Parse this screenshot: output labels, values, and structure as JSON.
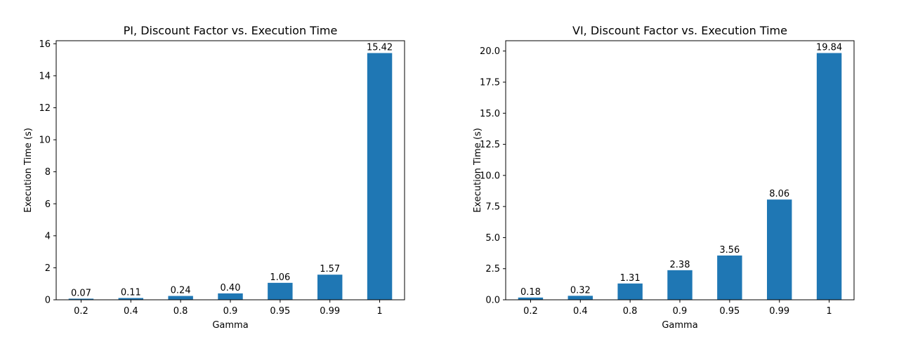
{
  "chart_data": [
    {
      "type": "bar",
      "title": "PI, Discount Factor vs. Execution Time",
      "xlabel": "Gamma",
      "ylabel": "Execution Time (s)",
      "categories": [
        "0.2",
        "0.4",
        "0.8",
        "0.9",
        "0.95",
        "0.99",
        "1"
      ],
      "values": [
        0.07,
        0.11,
        0.24,
        0.4,
        1.06,
        1.57,
        15.42
      ],
      "data_labels": [
        "0.07",
        "0.11",
        "0.24",
        "0.40",
        "1.06",
        "1.57",
        "15.42"
      ],
      "ylim": [
        0,
        16.19
      ],
      "yticks": [
        0,
        2,
        4,
        6,
        8,
        10,
        12,
        14,
        16
      ],
      "ytick_labels": [
        "0",
        "2",
        "4",
        "6",
        "8",
        "10",
        "12",
        "14",
        "16"
      ],
      "bar_color": "#1f77b4",
      "grid": false,
      "legend": "none"
    },
    {
      "type": "bar",
      "title": "VI, Discount Factor vs. Execution Time",
      "xlabel": "Gamma",
      "ylabel": "Execution Time (s)",
      "categories": [
        "0.2",
        "0.4",
        "0.8",
        "0.9",
        "0.95",
        "0.99",
        "1"
      ],
      "values": [
        0.18,
        0.32,
        1.31,
        2.38,
        3.56,
        8.06,
        19.84
      ],
      "data_labels": [
        "0.18",
        "0.32",
        "1.31",
        "2.38",
        "3.56",
        "8.06",
        "19.84"
      ],
      "ylim": [
        0,
        20.83
      ],
      "yticks": [
        0,
        2.5,
        5,
        7.5,
        10,
        12.5,
        15,
        17.5,
        20
      ],
      "ytick_labels": [
        "0.0",
        "2.5",
        "5.0",
        "7.5",
        "10.0",
        "12.5",
        "15.0",
        "17.5",
        "20.0"
      ],
      "bar_color": "#1f77b4",
      "grid": false,
      "legend": "none"
    }
  ]
}
